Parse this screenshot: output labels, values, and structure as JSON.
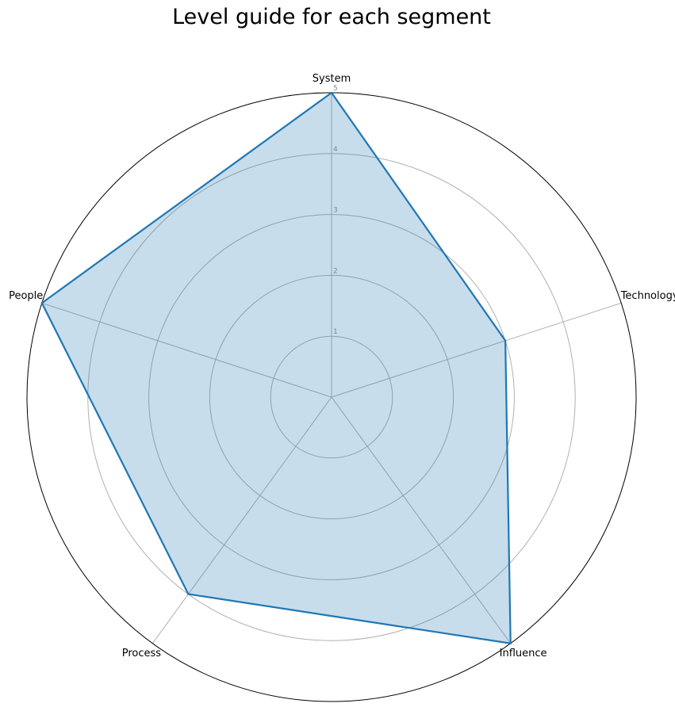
{
  "chart_data": {
    "type": "radar",
    "title": "Level guide for each segment",
    "categories": [
      "System",
      "Technology",
      "Influence",
      "Process",
      "People"
    ],
    "series": [
      {
        "values": [
          5,
          3,
          5,
          4,
          5
        ]
      }
    ],
    "rlim": [
      0,
      5
    ],
    "r_ticks": [
      "1",
      "2",
      "3",
      "4",
      "5"
    ],
    "grid": true,
    "colors": {
      "line": "#1f77b4",
      "fill": "#1f77b4",
      "grid": "#b0b0b0",
      "outer": "#000000",
      "tick": "#888888"
    }
  }
}
